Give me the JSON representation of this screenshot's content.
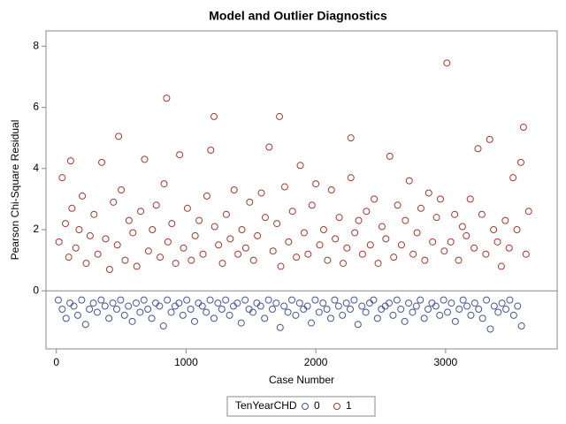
{
  "chart_data": {
    "type": "scatter",
    "title": "Model and Outlier Diagnostics",
    "x_label": "Case Number",
    "y_label": "Pearson Chi-Square Residual",
    "legend_title": "TenYearCHD",
    "legend_position": "bottom",
    "xlim": [
      -80,
      3860
    ],
    "ylim": [
      -1.9,
      8.5
    ],
    "xticks": [
      0,
      1000,
      2000,
      3000
    ],
    "yticks": [
      0,
      2,
      4,
      6,
      8
    ],
    "reference_line": 0,
    "series": [
      {
        "name": "0",
        "color": "#445694",
        "x": [
          15,
          45,
          75,
          105,
          135,
          165,
          195,
          225,
          255,
          285,
          315,
          345,
          375,
          405,
          435,
          465,
          495,
          525,
          555,
          585,
          615,
          645,
          675,
          705,
          735,
          765,
          795,
          825,
          855,
          885,
          915,
          945,
          975,
          1005,
          1035,
          1065,
          1095,
          1125,
          1155,
          1185,
          1215,
          1245,
          1275,
          1305,
          1335,
          1365,
          1395,
          1425,
          1455,
          1485,
          1515,
          1545,
          1575,
          1605,
          1635,
          1665,
          1695,
          1725,
          1755,
          1785,
          1815,
          1845,
          1875,
          1905,
          1935,
          1965,
          1995,
          2025,
          2055,
          2085,
          2115,
          2145,
          2175,
          2205,
          2235,
          2265,
          2295,
          2325,
          2355,
          2385,
          2415,
          2445,
          2475,
          2505,
          2535,
          2565,
          2595,
          2625,
          2655,
          2685,
          2715,
          2745,
          2775,
          2805,
          2835,
          2865,
          2895,
          2925,
          2955,
          2985,
          3015,
          3045,
          3075,
          3105,
          3135,
          3165,
          3195,
          3225,
          3255,
          3285,
          3315,
          3345,
          3375,
          3405,
          3435,
          3465,
          3495,
          3525,
          3555,
          3585
        ],
        "values": [
          -0.3,
          -0.6,
          -0.9,
          -0.4,
          -0.5,
          -0.8,
          -0.3,
          -1.1,
          -0.6,
          -0.4,
          -0.7,
          -0.3,
          -0.5,
          -0.9,
          -0.4,
          -0.6,
          -0.3,
          -0.8,
          -0.5,
          -1.0,
          -0.4,
          -0.7,
          -0.3,
          -0.6,
          -0.9,
          -0.4,
          -0.5,
          -1.15,
          -0.3,
          -0.7,
          -0.5,
          -0.4,
          -0.8,
          -0.3,
          -0.6,
          -1.0,
          -0.4,
          -0.5,
          -0.7,
          -0.3,
          -0.9,
          -0.4,
          -0.6,
          -0.3,
          -0.8,
          -0.5,
          -0.4,
          -1.05,
          -0.3,
          -0.6,
          -0.7,
          -0.4,
          -0.5,
          -0.9,
          -0.3,
          -0.6,
          -0.4,
          -1.2,
          -0.5,
          -0.7,
          -0.3,
          -0.8,
          -0.4,
          -0.6,
          -0.5,
          -1.05,
          -0.3,
          -0.7,
          -0.4,
          -0.6,
          -0.9,
          -0.3,
          -0.5,
          -0.8,
          -0.4,
          -0.6,
          -0.3,
          -1.1,
          -0.5,
          -0.7,
          -0.4,
          -0.3,
          -0.9,
          -0.6,
          -0.5,
          -0.4,
          -0.8,
          -0.3,
          -0.6,
          -1.0,
          -0.4,
          -0.7,
          -0.5,
          -0.3,
          -0.9,
          -0.6,
          -0.4,
          -0.5,
          -0.8,
          -0.3,
          -0.7,
          -0.4,
          -1.0,
          -0.6,
          -0.3,
          -0.5,
          -0.8,
          -0.4,
          -0.6,
          -0.9,
          -0.3,
          -1.25,
          -0.5,
          -0.7,
          -0.4,
          -0.6,
          -0.3,
          -0.8,
          -0.5,
          -1.15
        ]
      },
      {
        "name": "1",
        "color": "#a23a2e",
        "x": [
          20,
          45,
          70,
          95,
          120,
          150,
          175,
          200,
          230,
          260,
          290,
          320,
          350,
          380,
          410,
          440,
          470,
          500,
          530,
          560,
          590,
          620,
          650,
          680,
          710,
          740,
          770,
          800,
          830,
          860,
          890,
          920,
          950,
          980,
          1010,
          1040,
          1070,
          1100,
          1130,
          1160,
          1190,
          1220,
          1250,
          1280,
          1310,
          1340,
          1370,
          1400,
          1430,
          1460,
          1490,
          1520,
          1550,
          1580,
          1610,
          1640,
          1670,
          1700,
          1730,
          1760,
          1790,
          1820,
          1850,
          1880,
          1910,
          1940,
          1970,
          2000,
          2030,
          2060,
          2090,
          2120,
          2150,
          2180,
          2210,
          2240,
          2270,
          2300,
          2330,
          2360,
          2390,
          2420,
          2450,
          2480,
          2510,
          2540,
          2570,
          2600,
          2630,
          2660,
          2690,
          2720,
          2750,
          2780,
          2810,
          2840,
          2870,
          2900,
          2930,
          2960,
          2990,
          3010,
          3040,
          3070,
          3100,
          3130,
          3160,
          3190,
          3220,
          3250,
          3280,
          3310,
          3340,
          3370,
          3400,
          3430,
          3460,
          3490,
          3520,
          3550,
          3580,
          3600,
          3620,
          3640,
          110,
          850,
          1215,
          1720,
          480,
          2270
        ],
        "values": [
          1.6,
          3.7,
          2.2,
          1.1,
          2.7,
          1.4,
          2.0,
          3.1,
          0.9,
          1.8,
          2.5,
          1.2,
          4.2,
          1.7,
          0.7,
          2.9,
          1.5,
          3.3,
          1.0,
          2.3,
          1.9,
          0.8,
          2.6,
          4.3,
          1.3,
          2.0,
          2.8,
          1.1,
          3.5,
          1.6,
          2.2,
          0.9,
          4.45,
          1.4,
          2.7,
          1.0,
          1.8,
          2.3,
          1.2,
          3.1,
          4.6,
          2.1,
          1.5,
          0.9,
          2.5,
          1.7,
          3.3,
          1.2,
          2.0,
          1.4,
          2.9,
          1.0,
          1.8,
          3.2,
          2.4,
          4.7,
          1.3,
          2.2,
          0.8,
          3.4,
          1.6,
          2.6,
          1.1,
          4.1,
          1.9,
          1.2,
          2.8,
          3.5,
          1.5,
          2.0,
          1.0,
          3.3,
          1.7,
          2.4,
          0.9,
          1.4,
          3.7,
          1.9,
          2.3,
          1.2,
          2.6,
          1.5,
          3.0,
          0.9,
          2.1,
          1.7,
          4.4,
          1.1,
          2.8,
          1.5,
          2.3,
          3.6,
          1.2,
          1.9,
          2.7,
          1.0,
          3.2,
          1.6,
          2.4,
          3.0,
          1.3,
          7.45,
          1.6,
          2.5,
          1.0,
          2.1,
          1.8,
          3.0,
          1.4,
          4.65,
          2.5,
          1.2,
          4.95,
          2.0,
          1.6,
          0.8,
          2.3,
          1.4,
          3.7,
          2.0,
          4.2,
          5.35,
          1.2,
          2.6,
          4.25,
          6.3,
          5.7,
          5.7,
          5.05,
          5.0
        ]
      }
    ]
  }
}
